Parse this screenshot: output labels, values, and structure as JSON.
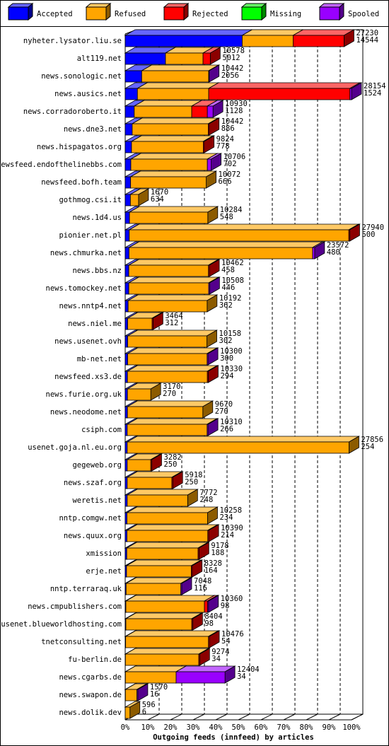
{
  "chart_data": {
    "type": "bar3d-stacked-horizontal",
    "x_label": "Outgoing feeds (innfeed) by articles",
    "categories": [
      "nyheter.lysator.liu.se",
      "alt119.net",
      "news.sonologic.net",
      "news.ausics.net",
      "news.corradoroberto.it",
      "news.dne3.net",
      "news.hispagatos.org",
      "newsfeed.endofthelinebbs.com",
      "newsfeed.bofh.team",
      "gothmog.csi.it",
      "news.1d4.us",
      "pionier.net.pl",
      "news.chmurka.net",
      "news.bbs.nz",
      "news.tomockey.net",
      "news.nntp4.net",
      "news.niel.me",
      "news.usenet.ovh",
      "mb-net.net",
      "newsfeed.xs3.de",
      "news.furie.org.uk",
      "news.neodome.net",
      "csiph.com",
      "usenet.goja.nl.eu.org",
      "gegeweb.org",
      "news.szaf.org",
      "weretis.net",
      "nntp.comgw.net",
      "news.quux.org",
      "xmission",
      "erje.net",
      "nntp.terraraq.uk",
      "news.cmpublishers.com",
      "usenet.blueworldhosting.com",
      "tnetconsulting.net",
      "fu-berlin.de",
      "news.cgarbs.de",
      "news.swapon.de",
      "news.dolik.dev"
    ],
    "offered": [
      27230,
      10578,
      10442,
      28154,
      10930,
      10442,
      9824,
      10706,
      10072,
      1670,
      10284,
      27940,
      23572,
      10462,
      10508,
      10192,
      3464,
      10158,
      10300,
      10330,
      3170,
      9670,
      10310,
      27856,
      3282,
      5918,
      7772,
      10258,
      10390,
      9178,
      8328,
      7048,
      10360,
      8404,
      10476,
      9274,
      12404,
      1570,
      596
    ],
    "accepted": [
      14544,
      5012,
      2056,
      1524,
      1128,
      886,
      778,
      702,
      666,
      634,
      548,
      500,
      480,
      458,
      446,
      362,
      312,
      302,
      300,
      294,
      270,
      270,
      266,
      254,
      250,
      250,
      248,
      234,
      214,
      188,
      164,
      116,
      98,
      98,
      54,
      34,
      34,
      16,
      6
    ],
    "series": [
      {
        "name": "Accepted",
        "color": "#0000ff",
        "values": [
          51.7,
          17.8,
          7.3,
          5.4,
          4.0,
          3.1,
          2.8,
          2.5,
          2.4,
          2.3,
          1.9,
          1.8,
          1.7,
          1.6,
          1.6,
          1.3,
          1.1,
          1.1,
          1.1,
          1.0,
          1.0,
          1.0,
          0.9,
          0.9,
          0.9,
          0.9,
          0.9,
          0.8,
          0.8,
          0.7,
          0.6,
          0.4,
          0.3,
          0.3,
          0.2,
          0.1,
          0.1,
          0.1,
          0.0
        ]
      },
      {
        "name": "Refused",
        "color": "#ffa500",
        "values": [
          22.5,
          16.6,
          29.6,
          31.5,
          25.4,
          33.6,
          31.7,
          33.8,
          33.4,
          3.6,
          34.6,
          97.0,
          81.1,
          35.2,
          35.3,
          34.9,
          10.8,
          35.0,
          35.1,
          35.3,
          10.3,
          33.3,
          35.3,
          98.0,
          10.4,
          19.7,
          26.7,
          35.6,
          35.7,
          31.5,
          28.6,
          24.2,
          34.7,
          29.1,
          36.6,
          32.4,
          22.4,
          5.1,
          2.1
        ]
      },
      {
        "name": "Rejected",
        "color": "#ff0000",
        "values": [
          22.5,
          3.2,
          0,
          62.4,
          6.9,
          0.4,
          0.4,
          0,
          0,
          0,
          0,
          0.4,
          0,
          0.4,
          0,
          0,
          0.4,
          0,
          0,
          0.4,
          0,
          0,
          0,
          0,
          0.4,
          0.4,
          0,
          0,
          0.4,
          0.4,
          0.4,
          0,
          1.4,
          0.4,
          0.4,
          0.4,
          0,
          0,
          0
        ]
      },
      {
        "name": "Missing",
        "color": "#00ff00",
        "values": [
          0,
          0,
          0,
          0,
          0,
          0,
          0,
          0,
          0,
          0,
          0,
          0,
          0,
          0,
          0,
          0,
          0,
          0,
          0,
          0,
          0,
          0,
          0,
          0,
          0,
          0,
          0,
          0,
          0,
          0,
          0,
          0,
          0,
          0,
          0,
          0,
          0,
          0,
          0
        ]
      },
      {
        "name": "Spooled",
        "color": "#9900ff",
        "values": [
          0,
          0,
          0.2,
          0.7,
          2.5,
          0,
          0,
          1.7,
          0,
          0,
          0,
          0,
          0.9,
          0,
          0.4,
          0,
          0,
          0,
          0.4,
          0,
          0,
          0,
          0.4,
          0,
          0,
          0,
          0,
          0,
          0,
          0,
          0,
          0.4,
          0.4,
          0,
          0,
          0,
          21.6,
          0.4,
          0
        ]
      }
    ],
    "xlim": [
      0,
      100
    ],
    "xticks": [
      {
        "value": 0,
        "label": "0%"
      },
      {
        "value": 10,
        "label": "10%"
      },
      {
        "value": 20,
        "label": "20%"
      },
      {
        "value": 30,
        "label": "30%"
      },
      {
        "value": 40,
        "label": "40%"
      },
      {
        "value": 50,
        "label": "50%"
      },
      {
        "value": 60,
        "label": "60%"
      },
      {
        "value": 70,
        "label": "70%"
      },
      {
        "value": 80,
        "label": "80%"
      },
      {
        "value": 90,
        "label": "90%"
      },
      {
        "value": 100,
        "label": "100%"
      }
    ],
    "grid": true
  }
}
